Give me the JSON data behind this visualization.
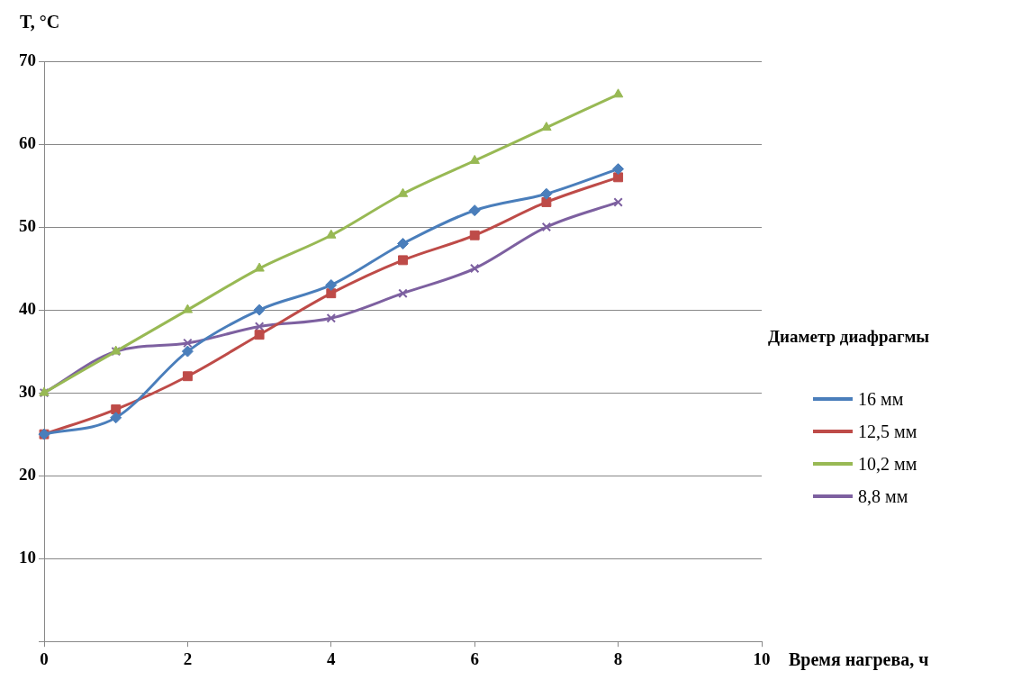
{
  "chart_data": {
    "type": "line",
    "ylabel": "T, °C",
    "xlabel": "Время нагрева, ч",
    "legend_title": "Диаметр диафрагмы",
    "legend": "right",
    "grid": "y",
    "xlim": [
      0,
      10
    ],
    "xticks": [
      0,
      2,
      4,
      6,
      8,
      10
    ],
    "ylim": [
      0,
      70
    ],
    "yticks": [
      {
        "value": 0,
        "label": null
      },
      10,
      20,
      30,
      40,
      50,
      60,
      70
    ],
    "x": [
      0,
      1,
      2,
      3,
      4,
      5,
      6,
      7,
      8
    ],
    "series": [
      {
        "name": "16 мм",
        "color": "#4a7ebb",
        "marker": "diamond",
        "values": [
          25,
          27,
          35,
          40,
          43,
          48,
          52,
          54,
          57
        ]
      },
      {
        "name": "12,5 мм",
        "color": "#be4b48",
        "marker": "square",
        "values": [
          25,
          28,
          32,
          37,
          42,
          46,
          49,
          53,
          56
        ]
      },
      {
        "name": "10,2 мм",
        "color": "#98b954",
        "marker": "triangle",
        "values": [
          30,
          35,
          40,
          45,
          49,
          54,
          58,
          62,
          66
        ]
      },
      {
        "name": "8,8 мм",
        "color": "#7d60a0",
        "marker": "cross",
        "values": [
          30,
          35,
          36,
          38,
          39,
          42,
          45,
          50,
          53
        ]
      }
    ]
  }
}
